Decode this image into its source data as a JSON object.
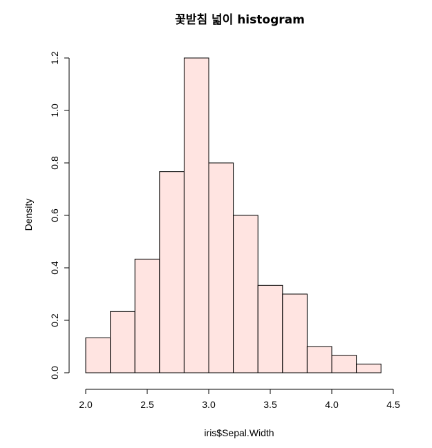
{
  "chart_data": {
    "type": "bar",
    "title": "꽃받침 넓이 histogram",
    "xlabel": "iris$Sepal.Width",
    "ylabel": "Density",
    "bins": [
      {
        "from": 2.0,
        "to": 2.2,
        "density": 0.1333
      },
      {
        "from": 2.2,
        "to": 2.4,
        "density": 0.2333
      },
      {
        "from": 2.4,
        "to": 2.6,
        "density": 0.4333
      },
      {
        "from": 2.6,
        "to": 2.8,
        "density": 0.7667
      },
      {
        "from": 2.8,
        "to": 3.0,
        "density": 1.2
      },
      {
        "from": 3.0,
        "to": 3.2,
        "density": 0.8
      },
      {
        "from": 3.2,
        "to": 3.4,
        "density": 0.6
      },
      {
        "from": 3.4,
        "to": 3.6,
        "density": 0.3333
      },
      {
        "from": 3.6,
        "to": 3.8,
        "density": 0.3
      },
      {
        "from": 3.8,
        "to": 4.0,
        "density": 0.1
      },
      {
        "from": 4.0,
        "to": 4.2,
        "density": 0.0667
      },
      {
        "from": 4.2,
        "to": 4.4,
        "density": 0.0333
      }
    ],
    "xlim": [
      2.0,
      4.5
    ],
    "ylim": [
      0.0,
      1.2
    ],
    "x_ticks": [
      "2.0",
      "2.5",
      "3.0",
      "3.5",
      "4.0",
      "4.5"
    ],
    "y_ticks": [
      "0.0",
      "0.2",
      "0.4",
      "0.6",
      "0.8",
      "1.0",
      "1.2"
    ],
    "bar_fill": "#ffe4e1",
    "bar_stroke": "#000000",
    "grid": false
  }
}
